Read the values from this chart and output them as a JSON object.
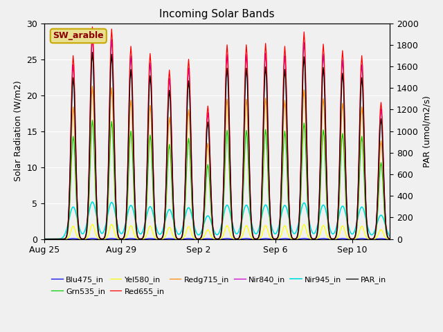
{
  "title": "Incoming Solar Bands",
  "ylabel_left": "Solar Radiation (W/m2)",
  "ylabel_right": "PAR (umol/m2/s)",
  "ylim_left": [
    0,
    30
  ],
  "ylim_right": [
    0,
    2000
  ],
  "bg_color": "#f0f0f0",
  "annotation_text": "SW_arable",
  "annotation_bg": "#e8e090",
  "annotation_fg": "#8b0000",
  "annotation_edge": "#c8a800",
  "series": [
    {
      "name": "Blu475_in",
      "color": "#0000ee",
      "lw": 0.9,
      "scale": 0.003
    },
    {
      "name": "Grn535_in",
      "color": "#00cc00",
      "lw": 0.9,
      "scale": 0.56
    },
    {
      "name": "Yel580_in",
      "color": "#ffff00",
      "lw": 0.9,
      "scale": 0.07
    },
    {
      "name": "Red655_in",
      "color": "#ff0000",
      "lw": 0.9,
      "scale": 1.0
    },
    {
      "name": "Redg715_in",
      "color": "#ff8800",
      "lw": 0.9,
      "scale": 0.72
    },
    {
      "name": "Nir840_in",
      "color": "#cc00cc",
      "lw": 0.9,
      "scale": 0.95
    },
    {
      "name": "Nir945_in",
      "color": "#00dddd",
      "lw": 1.2,
      "scale": 0.175,
      "broad": true
    },
    {
      "name": "PAR_in",
      "color": "#000000",
      "lw": 0.9,
      "scale": 0.88
    }
  ],
  "xtick_labels": [
    "Aug 25",
    "Aug 29",
    "Sep 2",
    "Sep 6",
    "Sep 10"
  ],
  "xtick_positions": [
    0,
    96,
    192,
    288,
    384
  ],
  "yticks_left": [
    0,
    5,
    10,
    15,
    20,
    25,
    30
  ],
  "yticks_right": [
    0,
    200,
    400,
    600,
    800,
    1000,
    1200,
    1400,
    1600,
    1800,
    2000
  ],
  "n_days": 18,
  "n_points": 432,
  "day_peak_heights": [
    0,
    25.5,
    29.5,
    29.2,
    26.8,
    25.8,
    23.5,
    25.0,
    18.5,
    27.0,
    27.0,
    27.2,
    26.8,
    28.8,
    27.1,
    26.2,
    25.5,
    19.0,
    0
  ],
  "peak_sigma": 0.12,
  "nir945_sigma": 0.22
}
